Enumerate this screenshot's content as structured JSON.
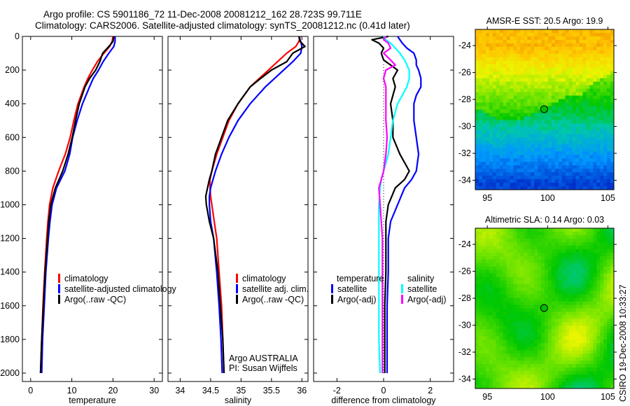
{
  "header": {
    "line1": "Argo profile: CS 5901186_72 11-Dec-2008 20081212_162 28.723S 99.711E",
    "line2": "Climatology: CARS2006. Satellite-adjusted climatology: synTS_20081212.nc (0.41d later)"
  },
  "footer_credit": "CSIRO 19-Dec-2008 10:33:27",
  "colors": {
    "climatology": "#ff0000",
    "satellite": "#0000ff",
    "argo": "#000000",
    "salinity_satellite": "#00ffff",
    "salinity_argo": "#ff00ff"
  },
  "chart_data": [
    {
      "type": "line",
      "name": "temperature-profile",
      "xlabel": "temperature",
      "ylabel": "",
      "xlim": [
        -2,
        32
      ],
      "ylim": [
        0,
        2050
      ],
      "y_reversed": true,
      "xticks": [
        0,
        10,
        20,
        30
      ],
      "yticks": [
        0,
        200,
        400,
        600,
        800,
        1000,
        1200,
        1400,
        1600,
        1800,
        2000
      ],
      "depth": [
        0,
        30,
        60,
        100,
        150,
        200,
        250,
        300,
        400,
        500,
        600,
        700,
        800,
        900,
        1000,
        1100,
        1200,
        1400,
        1600,
        1800,
        2000
      ],
      "series": [
        {
          "name": "climatology",
          "color": "#ff0000",
          "values": [
            20.0,
            19.8,
            19.2,
            17.8,
            16.2,
            15.0,
            13.9,
            13.0,
            11.5,
            10.5,
            9.6,
            8.4,
            6.8,
            5.4,
            4.6,
            4.2,
            3.9,
            3.4,
            3.0,
            2.7,
            2.4
          ]
        },
        {
          "name": "satellite-adjusted climatology",
          "color": "#0000ff",
          "values": [
            20.5,
            20.5,
            20.2,
            19.0,
            17.6,
            16.5,
            15.2,
            14.3,
            12.6,
            11.3,
            10.2,
            9.5,
            8.3,
            6.3,
            5.2,
            4.7,
            4.3,
            3.7,
            3.3,
            2.9,
            2.7
          ]
        },
        {
          "name": "Argo(..raw -QC)",
          "color": "#000000",
          "values": [
            20.2,
            20.0,
            19.0,
            17.5,
            16.8,
            15.8,
            14.3,
            13.2,
            11.8,
            10.9,
            10.1,
            9.1,
            7.8,
            6.0,
            4.9,
            4.4,
            4.1,
            3.5,
            3.1,
            2.7,
            2.4
          ]
        }
      ],
      "legend": [
        "climatology",
        "satellite-adjusted climatology",
        "Argo(..raw -QC)"
      ],
      "legend_position": "lower-center"
    },
    {
      "type": "line",
      "name": "salinity-profile",
      "xlabel": "salinity",
      "xlim": [
        33.8,
        36.1
      ],
      "ylim": [
        0,
        2050
      ],
      "y_reversed": true,
      "xticks": [
        34,
        34.5,
        35,
        35.5,
        36
      ],
      "yticks": [
        0,
        200,
        400,
        600,
        800,
        1000,
        1200,
        1400,
        1600,
        1800,
        2000
      ],
      "depth": [
        0,
        30,
        60,
        100,
        150,
        200,
        250,
        300,
        400,
        500,
        600,
        700,
        800,
        850,
        900,
        950,
        1000,
        1100,
        1200,
        1400,
        1600,
        1800,
        2000
      ],
      "series": [
        {
          "name": "climatology",
          "color": "#ff0000",
          "values": [
            35.97,
            35.95,
            35.9,
            35.75,
            35.6,
            35.45,
            35.3,
            35.15,
            34.95,
            34.8,
            34.7,
            34.6,
            34.52,
            34.49,
            34.49,
            34.5,
            34.52,
            34.56,
            34.6,
            34.64,
            34.68,
            34.7,
            34.72
          ]
        },
        {
          "name": "satellite adj. clim.",
          "color": "#0000ff",
          "values": [
            35.95,
            35.98,
            36.0,
            35.98,
            35.85,
            35.7,
            35.55,
            35.4,
            35.15,
            34.95,
            34.8,
            34.68,
            34.58,
            34.54,
            34.5,
            34.48,
            34.48,
            34.5,
            34.55,
            34.6,
            34.64,
            34.67,
            34.69
          ]
        },
        {
          "name": "Argo(..raw -QC)",
          "color": "#000000",
          "values": [
            35.95,
            35.97,
            36.05,
            35.85,
            35.75,
            35.5,
            35.32,
            35.15,
            34.95,
            34.78,
            34.68,
            34.58,
            34.52,
            34.48,
            34.45,
            34.42,
            34.43,
            34.48,
            34.55,
            34.62,
            34.66,
            34.7,
            34.72
          ]
        }
      ],
      "legend": [
        "climatology",
        "satellite adj. clim.",
        "Argo(..raw -QC)"
      ],
      "legend_position": "lower-right",
      "annotation": [
        "Argo AUSTRALIA",
        "PI: Susan Wijffels"
      ]
    },
    {
      "type": "line",
      "name": "difference-profile",
      "xlabel": "difference from climatology",
      "xlim": [
        -3,
        3
      ],
      "ylim": [
        0,
        2050
      ],
      "y_reversed": true,
      "xticks": [
        -2,
        0,
        2
      ],
      "yticks": [
        0,
        200,
        400,
        600,
        800,
        1000,
        1200,
        1400,
        1600,
        1800,
        2000
      ],
      "zero_line": "dotted",
      "depth": [
        0,
        20,
        40,
        70,
        100,
        140,
        170,
        200,
        250,
        300,
        350,
        400,
        500,
        600,
        700,
        800,
        850,
        900,
        1000,
        1100,
        1200,
        1400,
        1600,
        1800,
        2000
      ],
      "series": [
        {
          "name": "temperature satellite",
          "group": "temperature",
          "color": "#0000ff",
          "values": [
            0.6,
            0.7,
            0.8,
            1.0,
            1.3,
            1.4,
            1.4,
            1.5,
            1.6,
            1.6,
            1.4,
            1.3,
            1.3,
            1.4,
            1.5,
            1.4,
            1.2,
            0.9,
            0.6,
            0.3,
            0.2,
            0.2,
            0.15,
            0.15,
            0.15
          ]
        },
        {
          "name": "temperature Argo(-adj)",
          "group": "temperature",
          "color": "#000000",
          "values": [
            0.2,
            -0.5,
            -0.2,
            0.0,
            -0.1,
            0.0,
            0.3,
            0.6,
            0.4,
            0.5,
            0.4,
            0.3,
            0.4,
            0.4,
            0.7,
            1.1,
            0.9,
            0.5,
            0.2,
            0.1,
            0.1,
            0.1,
            0.05,
            0.05,
            0.05
          ]
        },
        {
          "name": "salinity satellite",
          "group": "salinity",
          "color": "#00ffff",
          "values": [
            0.0,
            0.1,
            0.3,
            0.5,
            0.7,
            0.9,
            1.0,
            1.1,
            1.1,
            1.0,
            0.8,
            0.6,
            0.4,
            0.3,
            0.2,
            0.0,
            -0.1,
            -0.15,
            -0.2,
            -0.2,
            -0.2,
            -0.2,
            -0.2,
            -0.2,
            -0.15
          ]
        },
        {
          "name": "salinity Argo(-adj)",
          "group": "salinity",
          "color": "#ff00ff",
          "values": [
            0.1,
            0.0,
            0.2,
            0.3,
            0.0,
            0.3,
            0.5,
            0.1,
            0.0,
            0.1,
            0.1,
            0.1,
            0.1,
            0.15,
            0.1,
            0.0,
            -0.1,
            -0.2,
            -0.15,
            -0.1,
            -0.05,
            -0.05,
            -0.05,
            -0.05,
            -0.05
          ]
        }
      ],
      "legend_groups": [
        {
          "title": "temperature",
          "items": [
            "satellite",
            "Argo(-adj)"
          ]
        },
        {
          "title": "salinity",
          "items": [
            "satellite",
            "Argo(-adj)"
          ]
        }
      ],
      "legend_position": "lower-center"
    },
    {
      "type": "heatmap",
      "name": "amsr-sst-map",
      "title": "AMSR-E SST: 20.5 Argo: 19.9",
      "xlim": [
        94,
        105.5
      ],
      "ylim": [
        -34.7,
        -22.8
      ],
      "xticks": [
        95,
        100,
        105
      ],
      "yticks": [
        -24,
        -26,
        -28,
        -30,
        -32,
        -34
      ],
      "marker": {
        "lon": 99.711,
        "lat": -28.723
      },
      "pattern": "warm (orange/yellow) north, grading to green around -29, cool (cyan/blue) south of -31"
    },
    {
      "type": "heatmap",
      "name": "altimetric-sla-map",
      "title": "Altimetric SLA: 0.14 Argo: 0.03",
      "xlim": [
        94,
        105.5
      ],
      "ylim": [
        -34.7,
        -22.8
      ],
      "xticks": [
        95,
        100,
        105
      ],
      "yticks": [
        -24,
        -26,
        -28,
        -30,
        -32,
        -34
      ],
      "marker": {
        "lon": 99.711,
        "lat": -28.723
      },
      "pattern": "green background with smooth yellow/orange eddies"
    }
  ]
}
